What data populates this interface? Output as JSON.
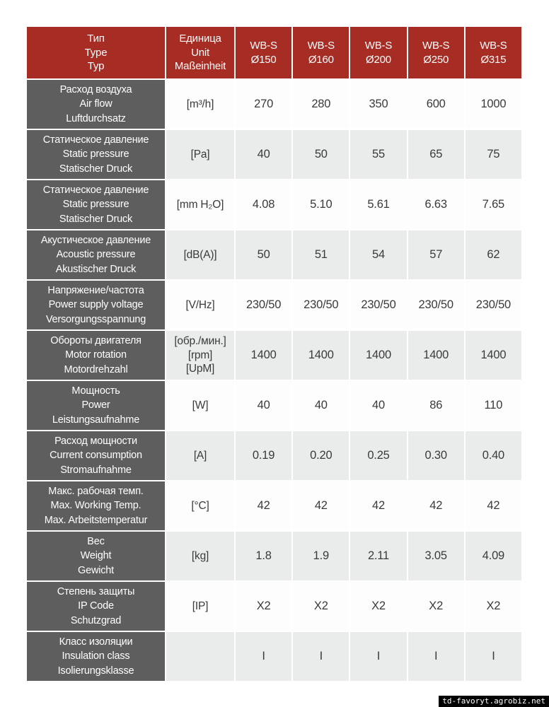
{
  "colors": {
    "header_bg": "#a72c24",
    "header_text": "#ffffff",
    "label_bg": "#5e5e5e",
    "row_light_bg": "#e9eceb",
    "row_white_bg": "#fdfdfd",
    "value_text": "#3a3a3a",
    "watermark_bg": "#000000",
    "watermark_text_color": "#ffffff"
  },
  "table": {
    "header": {
      "type": [
        "Тип",
        "Type",
        "Typ"
      ],
      "unit": [
        "Единица",
        "Unit",
        "Maßeinheit"
      ],
      "models": [
        [
          "WB-S",
          "Ø150"
        ],
        [
          "WB-S",
          "Ø160"
        ],
        [
          "WB-S",
          "Ø200"
        ],
        [
          "WB-S",
          "Ø250"
        ],
        [
          "WB-S",
          "Ø315"
        ]
      ]
    },
    "rows": [
      {
        "label": [
          "Расход воздуха",
          "Air flow",
          "Luftdurchsatz"
        ],
        "unit": [
          "[m³/h]"
        ],
        "values": [
          "270",
          "280",
          "350",
          "600",
          "1000"
        ]
      },
      {
        "label": [
          "Статическое давление",
          "Static pressure",
          "Statischer Druck"
        ],
        "unit": [
          "[Pa]"
        ],
        "values": [
          "40",
          "50",
          "55",
          "65",
          "75"
        ]
      },
      {
        "label": [
          "Статическое давление",
          "Static pressure",
          "Statischer Druck"
        ],
        "unit": [
          "[mm H₂O]"
        ],
        "values": [
          "4.08",
          "5.10",
          "5.61",
          "6.63",
          "7.65"
        ]
      },
      {
        "label": [
          "Акустическое давление",
          "Acoustic pressure",
          "Akustischer Druck"
        ],
        "unit": [
          "[dB(A)]"
        ],
        "values": [
          "50",
          "51",
          "54",
          "57",
          "62"
        ]
      },
      {
        "label": [
          "Напряжение/частота",
          "Power supply voltage",
          "Versorgungsspannung"
        ],
        "unit": [
          "[V/Hz]"
        ],
        "values": [
          "230/50",
          "230/50",
          "230/50",
          "230/50",
          "230/50"
        ]
      },
      {
        "label": [
          "Обороты двигателя",
          "Motor rotation",
          "Motordrehzahl"
        ],
        "unit": [
          "[обр./мин.]",
          "[rpm]",
          "[UpM]"
        ],
        "values": [
          "1400",
          "1400",
          "1400",
          "1400",
          "1400"
        ]
      },
      {
        "label": [
          "Мощность",
          "Power",
          "Leistungsaufnahme"
        ],
        "unit": [
          "[W]"
        ],
        "values": [
          "40",
          "40",
          "40",
          "86",
          "110"
        ]
      },
      {
        "label": [
          "Расход мощности",
          "Current consumption",
          "Stromaufnahme"
        ],
        "unit": [
          "[A]"
        ],
        "values": [
          "0.19",
          "0.20",
          "0.25",
          "0.30",
          "0.40"
        ]
      },
      {
        "label": [
          "Макс. рабочая темп.",
          "Max. Working Temp.",
          "Max. Arbeitstemperatur"
        ],
        "unit": [
          "[°C]"
        ],
        "values": [
          "42",
          "42",
          "42",
          "42",
          "42"
        ]
      },
      {
        "label": [
          "Вес",
          "Weight",
          "Gewicht"
        ],
        "unit": [
          "[kg]"
        ],
        "values": [
          "1.8",
          "1.9",
          "2.11",
          "3.05",
          "4.09"
        ]
      },
      {
        "label": [
          "Степень защиты",
          "IP Code",
          "Schutzgrad"
        ],
        "unit": [
          "[IP]"
        ],
        "values": [
          "X2",
          "X2",
          "X2",
          "X2",
          "X2"
        ]
      },
      {
        "label": [
          "Класс изоляции",
          "Insulation class",
          "Isolierungsklasse"
        ],
        "unit": [],
        "values": [
          "I",
          "I",
          "I",
          "I",
          "I"
        ]
      }
    ]
  },
  "watermark": {
    "text": "td-favoryt.agrobiz.net"
  }
}
